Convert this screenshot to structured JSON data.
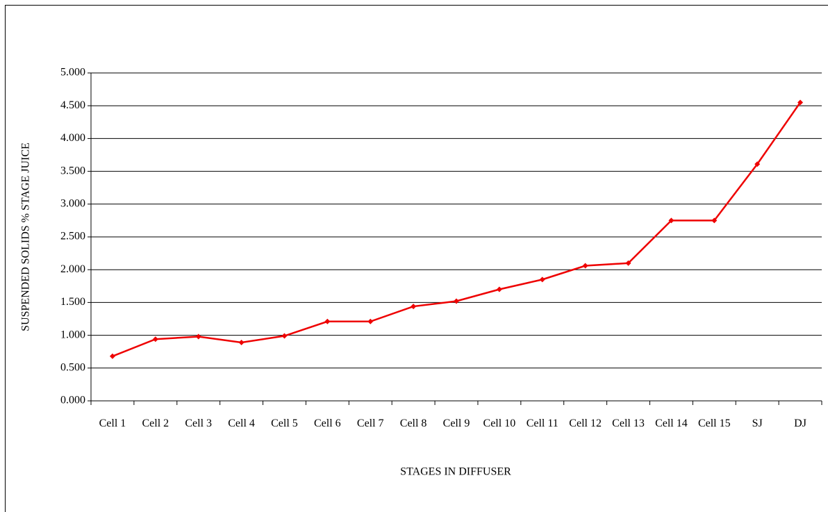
{
  "chart_data": {
    "type": "line",
    "x_label": "STAGES IN DIFFUSER",
    "y_label": "SUSPENDED SOLIDS % STAGE JUICE",
    "categories": [
      "Cell 1",
      "Cell 2",
      "Cell 3",
      "Cell 4",
      "Cell 5",
      "Cell 6",
      "Cell 7",
      "Cell 8",
      "Cell 9",
      "Cell 10",
      "Cell 11",
      "Cell 12",
      "Cell 13",
      "Cell 14",
      "Cell 15",
      "SJ",
      "DJ"
    ],
    "series": [
      {
        "color": "#ee0000",
        "values": [
          0.68,
          0.94,
          0.98,
          0.89,
          0.99,
          1.21,
          1.21,
          1.44,
          1.52,
          1.7,
          1.85,
          2.06,
          2.1,
          2.75,
          2.75,
          3.61,
          4.55
        ]
      }
    ],
    "ylim": [
      0,
      5
    ],
    "yticks": [
      {
        "value": 0,
        "label": "0.000"
      },
      {
        "value": 0.5,
        "label": "0.500"
      },
      {
        "value": 1,
        "label": "1.000"
      },
      {
        "value": 1.5,
        "label": "1.500"
      },
      {
        "value": 2,
        "label": "2.000"
      },
      {
        "value": 2.5,
        "label": "2.500"
      },
      {
        "value": 3,
        "label": "3.000"
      },
      {
        "value": 3.5,
        "label": "3.500"
      },
      {
        "value": 4,
        "label": "4.000"
      },
      {
        "value": 4.5,
        "label": "4.500"
      },
      {
        "value": 5,
        "label": "5.000"
      }
    ],
    "grid": true
  }
}
